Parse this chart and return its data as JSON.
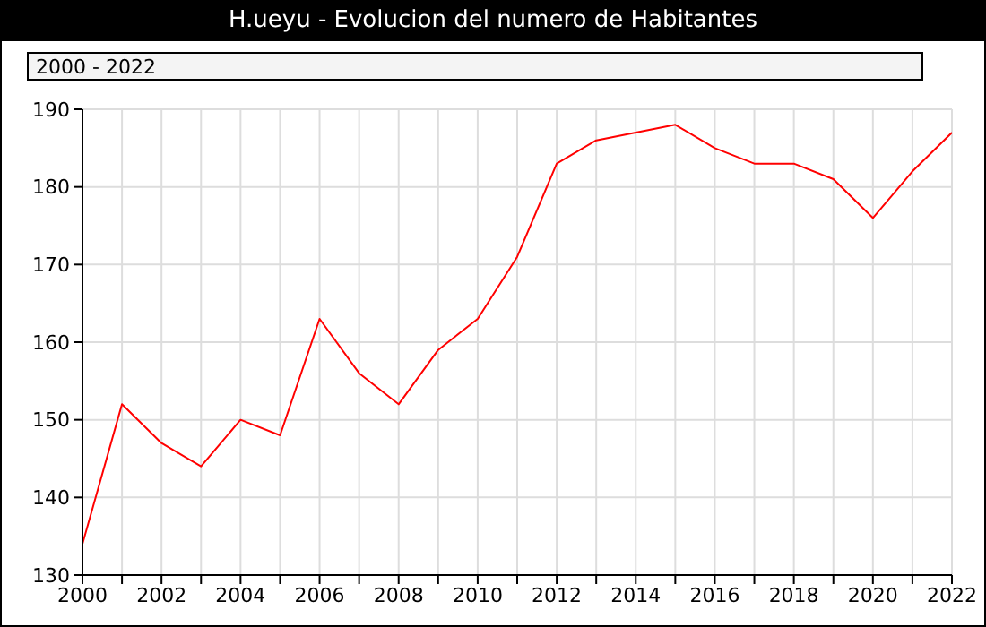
{
  "chart_data": {
    "type": "line",
    "title": "H.ueyu - Evolucion del numero de Habitantes",
    "subtitle": "2000 - 2022",
    "x": [
      2000,
      2001,
      2002,
      2003,
      2004,
      2005,
      2006,
      2007,
      2008,
      2009,
      2010,
      2011,
      2012,
      2013,
      2014,
      2015,
      2016,
      2017,
      2018,
      2019,
      2020,
      2021,
      2022
    ],
    "series": [
      {
        "color": "#ff0000",
        "values": [
          134,
          152,
          147,
          144,
          150,
          148,
          163,
          156,
          152,
          159,
          163,
          171,
          183,
          186,
          187,
          188,
          185,
          183,
          183,
          181,
          176,
          182,
          187
        ]
      }
    ],
    "xlim": [
      2000,
      2022
    ],
    "xticks": [
      2000,
      {
        "value": 2001,
        "label": null
      },
      2002,
      {
        "value": 2003,
        "label": null
      },
      2004,
      {
        "value": 2005,
        "label": null
      },
      2006,
      {
        "value": 2007,
        "label": null
      },
      2008,
      {
        "value": 2009,
        "label": null
      },
      2010,
      {
        "value": 2011,
        "label": null
      },
      2012,
      {
        "value": 2013,
        "label": null
      },
      2014,
      {
        "value": 2015,
        "label": null
      },
      2016,
      {
        "value": 2017,
        "label": null
      },
      2018,
      {
        "value": 2019,
        "label": null
      },
      2020,
      {
        "value": 2021,
        "label": null
      },
      2022
    ],
    "ylim": [
      130,
      190
    ],
    "yticks": [
      130,
      140,
      150,
      160,
      170,
      180,
      190
    ],
    "grid": true,
    "marker": "none",
    "line_style": "solid"
  }
}
